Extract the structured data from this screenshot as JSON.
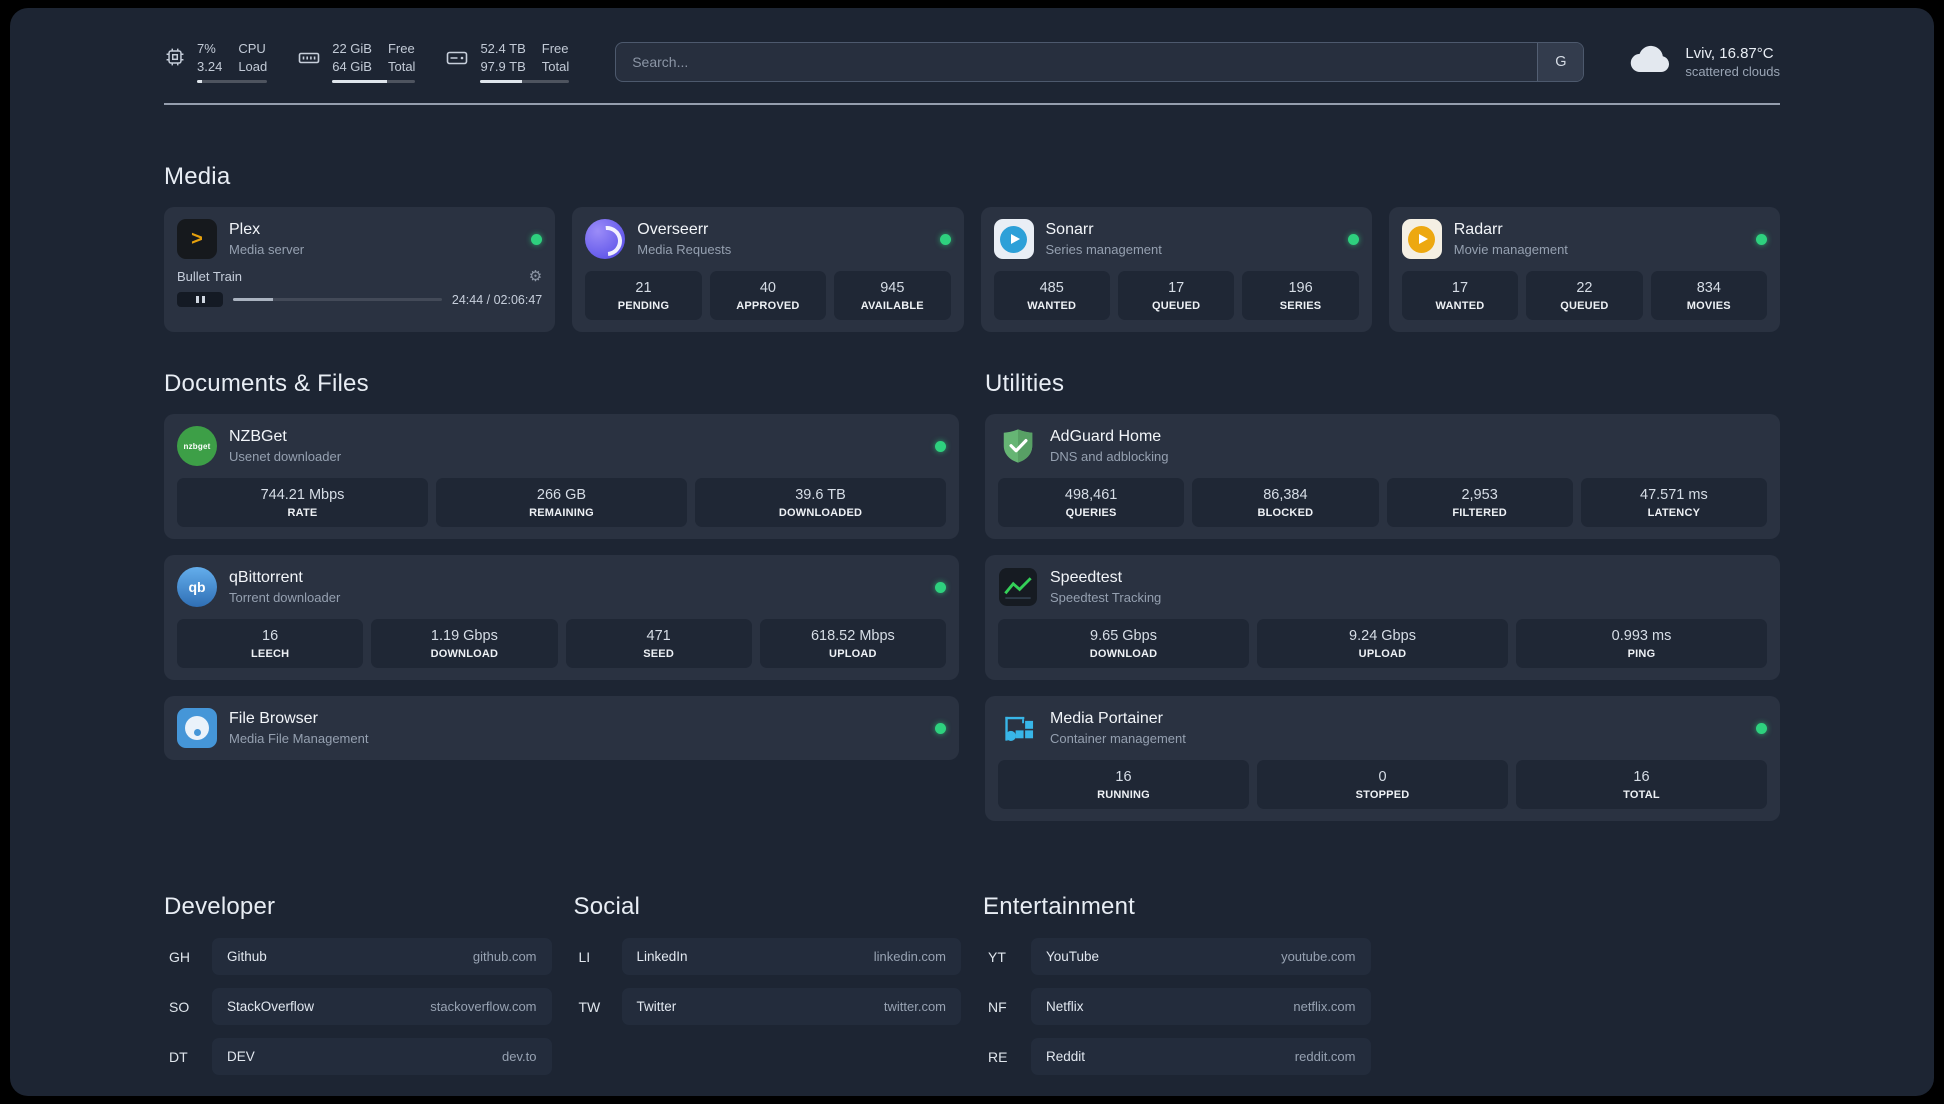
{
  "colors": {
    "background": "#1d2533",
    "card": "#2a3241",
    "stat_block": "#1f2735",
    "status_online": "#2ed17e",
    "plex_amber": "#e5a00d",
    "portainer_blue": "#38b6e8",
    "adguard_green": "#66b574"
  },
  "topbar": {
    "resources": [
      {
        "icon": "cpu-icon",
        "value_top": "7%",
        "value_bottom": "3.24",
        "label_top": "CPU",
        "label_bottom": "Load",
        "bar": "7%"
      },
      {
        "icon": "memory-icon",
        "value_top": "22 GiB",
        "value_bottom": "64 GiB",
        "label_top": "Free",
        "label_bottom": "Total",
        "bar": "66%"
      },
      {
        "icon": "disk-icon",
        "value_top": "52.4 TB",
        "value_bottom": "97.9 TB",
        "label_top": "Free",
        "label_bottom": "Total",
        "bar": "47%"
      }
    ],
    "search": {
      "placeholder": "Search...",
      "provider_button": "G"
    },
    "weather": {
      "icon": "cloud-icon",
      "title": "Lviv, 16.87°C",
      "subtitle": "scattered clouds"
    }
  },
  "media": {
    "title": "Media",
    "plex": {
      "icon": "plex-icon",
      "name": "Plex",
      "subtitle": "Media server",
      "online": true,
      "player": {
        "track": "Bullet Train",
        "time": "24:44 / 02:06:47",
        "progress": "19%"
      }
    },
    "overseerr": {
      "icon": "overseerr-icon",
      "name": "Overseerr",
      "subtitle": "Media Requests",
      "online": true,
      "stats": [
        {
          "value": "21",
          "label": "PENDING"
        },
        {
          "value": "40",
          "label": "APPROVED"
        },
        {
          "value": "945",
          "label": "AVAILABLE"
        }
      ]
    },
    "sonarr": {
      "icon": "sonarr-icon",
      "name": "Sonarr",
      "subtitle": "Series management",
      "online": true,
      "stats": [
        {
          "value": "485",
          "label": "WANTED"
        },
        {
          "value": "17",
          "label": "QUEUED"
        },
        {
          "value": "196",
          "label": "SERIES"
        }
      ]
    },
    "radarr": {
      "icon": "radarr-icon",
      "name": "Radarr",
      "subtitle": "Movie management",
      "online": true,
      "stats": [
        {
          "value": "17",
          "label": "WANTED"
        },
        {
          "value": "22",
          "label": "QUEUED"
        },
        {
          "value": "834",
          "label": "MOVIES"
        }
      ]
    }
  },
  "documents": {
    "title": "Documents & Files",
    "nzbget": {
      "icon": "nzbget-icon",
      "name": "NZBGet",
      "subtitle": "Usenet downloader",
      "online": true,
      "stats": [
        {
          "value": "744.21 Mbps",
          "label": "RATE"
        },
        {
          "value": "266 GB",
          "label": "REMAINING"
        },
        {
          "value": "39.6 TB",
          "label": "DOWNLOADED"
        }
      ]
    },
    "qbittorrent": {
      "icon": "qbittorrent-icon",
      "name": "qBittorrent",
      "subtitle": "Torrent downloader",
      "online": true,
      "stats": [
        {
          "value": "16",
          "label": "LEECH"
        },
        {
          "value": "1.19 Gbps",
          "label": "DOWNLOAD"
        },
        {
          "value": "471",
          "label": "SEED"
        },
        {
          "value": "618.52 Mbps",
          "label": "UPLOAD"
        }
      ]
    },
    "filebrowser": {
      "icon": "filebrowser-icon",
      "name": "File Browser",
      "subtitle": "Media File Management",
      "online": true
    }
  },
  "utilities": {
    "title": "Utilities",
    "adguard": {
      "icon": "adguard-icon",
      "name": "AdGuard Home",
      "subtitle": "DNS and adblocking",
      "online": false,
      "stats": [
        {
          "value": "498,461",
          "label": "QUERIES"
        },
        {
          "value": "86,384",
          "label": "BLOCKED"
        },
        {
          "value": "2,953",
          "label": "FILTERED"
        },
        {
          "value": "47.571 ms",
          "label": "LATENCY"
        }
      ]
    },
    "speedtest": {
      "icon": "speedtest-icon",
      "name": "Speedtest",
      "subtitle": "Speedtest Tracking",
      "online": false,
      "stats": [
        {
          "value": "9.65 Gbps",
          "label": "DOWNLOAD"
        },
        {
          "value": "9.24 Gbps",
          "label": "UPLOAD"
        },
        {
          "value": "0.993 ms",
          "label": "PING"
        }
      ]
    },
    "portainer": {
      "icon": "portainer-icon",
      "name": "Media Portainer",
      "subtitle": "Container management",
      "online": true,
      "stats": [
        {
          "value": "16",
          "label": "RUNNING"
        },
        {
          "value": "0",
          "label": "STOPPED"
        },
        {
          "value": "16",
          "label": "TOTAL"
        }
      ]
    }
  },
  "bookmarks": {
    "groups": [
      {
        "title": "Developer",
        "items": [
          {
            "abbr": "GH",
            "name": "Github",
            "url": "github.com"
          },
          {
            "abbr": "SO",
            "name": "StackOverflow",
            "url": "stackoverflow.com"
          },
          {
            "abbr": "DT",
            "name": "DEV",
            "url": "dev.to"
          }
        ]
      },
      {
        "title": "Social",
        "items": [
          {
            "abbr": "LI",
            "name": "LinkedIn",
            "url": "linkedin.com"
          },
          {
            "abbr": "TW",
            "name": "Twitter",
            "url": "twitter.com"
          }
        ]
      },
      {
        "title": "Entertainment",
        "items": [
          {
            "abbr": "YT",
            "name": "YouTube",
            "url": "youtube.com"
          },
          {
            "abbr": "NF",
            "name": "Netflix",
            "url": "netflix.com"
          },
          {
            "abbr": "RE",
            "name": "Reddit",
            "url": "reddit.com"
          }
        ]
      }
    ]
  }
}
